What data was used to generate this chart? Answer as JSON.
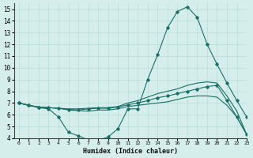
{
  "xlabel": "Humidex (Indice chaleur)",
  "background_color": "#d5eeeb",
  "line_color": "#1a6e65",
  "grid_color": "#b8ddd9",
  "xlim": [
    -0.5,
    23
  ],
  "ylim": [
    4,
    15.5
  ],
  "yticks": [
    4,
    5,
    6,
    7,
    8,
    9,
    10,
    11,
    12,
    13,
    14,
    15
  ],
  "xticks": [
    0,
    1,
    2,
    3,
    4,
    5,
    6,
    7,
    8,
    9,
    10,
    11,
    12,
    13,
    14,
    15,
    16,
    17,
    18,
    19,
    20,
    21,
    22,
    23
  ],
  "lines": [
    {
      "x": [
        0,
        1,
        2,
        3,
        4,
        5,
        6,
        7,
        8,
        9,
        10,
        11,
        12,
        13,
        14,
        15,
        16,
        17,
        18,
        19,
        20,
        21,
        22,
        23
      ],
      "y": [
        7.0,
        6.8,
        6.6,
        6.5,
        5.8,
        4.5,
        4.2,
        3.85,
        3.8,
        4.1,
        4.8,
        6.5,
        6.5,
        9.0,
        11.1,
        13.4,
        14.8,
        15.2,
        14.3,
        12.0,
        10.3,
        8.7,
        7.2,
        5.8
      ],
      "marker": true
    },
    {
      "x": [
        0,
        1,
        2,
        3,
        4,
        5,
        6,
        7,
        8,
        9,
        10,
        11,
        12,
        13,
        14,
        15,
        16,
        17,
        18,
        19,
        20,
        21,
        22,
        23
      ],
      "y": [
        7.0,
        6.8,
        6.65,
        6.6,
        6.55,
        6.5,
        6.5,
        6.55,
        6.6,
        6.6,
        6.7,
        7.0,
        7.2,
        7.5,
        7.8,
        8.0,
        8.2,
        8.5,
        8.7,
        8.8,
        8.7,
        7.6,
        6.3,
        4.3
      ],
      "marker": false
    },
    {
      "x": [
        0,
        1,
        2,
        3,
        4,
        5,
        6,
        7,
        8,
        9,
        10,
        11,
        12,
        13,
        14,
        15,
        16,
        17,
        18,
        19,
        20,
        21,
        22,
        23
      ],
      "y": [
        7.0,
        6.8,
        6.65,
        6.6,
        6.55,
        6.45,
        6.4,
        6.5,
        6.55,
        6.55,
        6.65,
        6.85,
        7.0,
        7.2,
        7.45,
        7.6,
        7.8,
        8.0,
        8.2,
        8.4,
        8.5,
        7.2,
        5.8,
        4.3
      ],
      "marker": true
    },
    {
      "x": [
        0,
        1,
        2,
        3,
        4,
        5,
        6,
        7,
        8,
        9,
        10,
        11,
        12,
        13,
        14,
        15,
        16,
        17,
        18,
        19,
        20,
        21,
        22,
        23
      ],
      "y": [
        7.0,
        6.8,
        6.65,
        6.6,
        6.55,
        6.4,
        6.35,
        6.3,
        6.4,
        6.4,
        6.5,
        6.7,
        6.8,
        6.9,
        7.0,
        7.1,
        7.3,
        7.5,
        7.6,
        7.6,
        7.5,
        6.8,
        5.8,
        4.3
      ],
      "marker": false
    }
  ]
}
